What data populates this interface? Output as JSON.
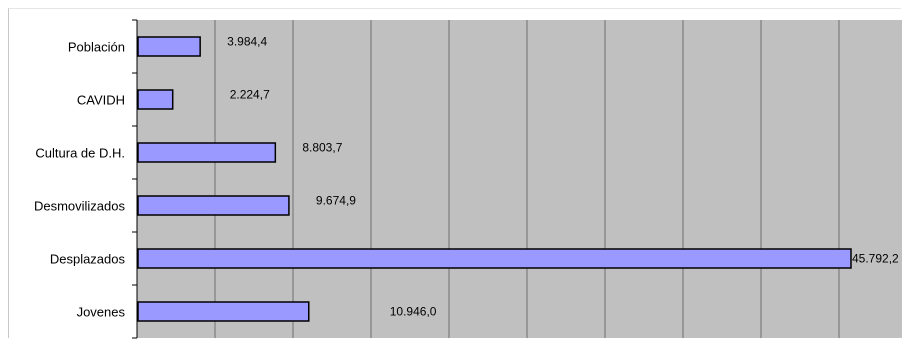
{
  "chart_data": {
    "type": "bar",
    "orientation": "horizontal",
    "categories": [
      "Población",
      "CAVIDH",
      "Cultura de D.H.",
      "Desmovilizados",
      "Desplazados",
      "Jovenes"
    ],
    "values": [
      3984.4,
      2224.7,
      8803.7,
      9674.9,
      45792.2,
      10946.0
    ],
    "data_labels": [
      "3.984,4",
      "2.224,7",
      "8.803,7",
      "9.674,9",
      "45.792,2",
      "10.946,0"
    ],
    "xlim": [
      0,
      45000
    ],
    "grid": true,
    "colors": {
      "bar": "#9999ff",
      "bar_border": "#000000",
      "plot_background": "#c0c0c0",
      "gridline": "#707070"
    }
  }
}
